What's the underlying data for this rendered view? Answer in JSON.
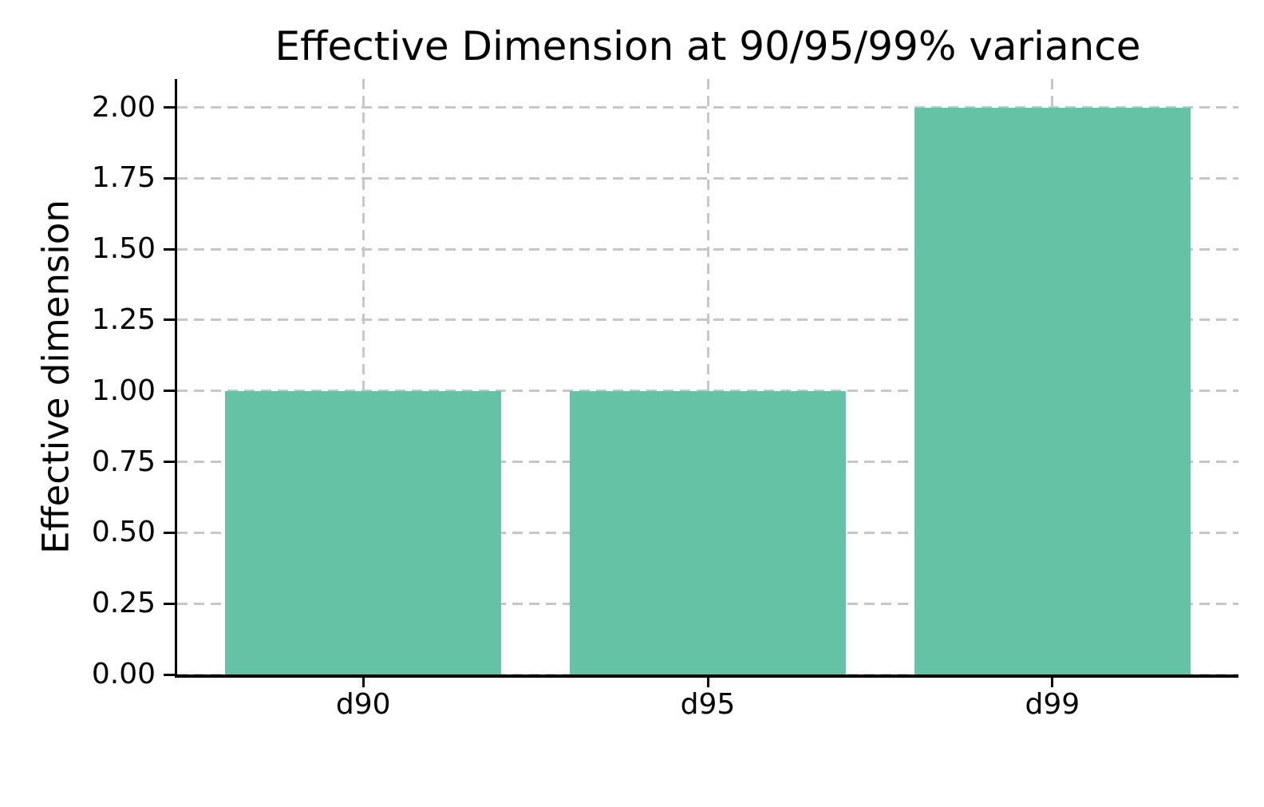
{
  "chart_data": {
    "type": "bar",
    "title": "Effective Dimension at 90/95/99% variance",
    "xlabel": "",
    "ylabel": "Effective dimension",
    "categories": [
      "d90",
      "d95",
      "d99"
    ],
    "values": [
      1,
      1,
      2
    ],
    "yticks": [
      0,
      0.25,
      0.5,
      0.75,
      1,
      1.25,
      1.5,
      1.75,
      2
    ],
    "ytick_labels": [
      "0.00",
      "0.25",
      "0.50",
      "0.75",
      "1.00",
      "1.25",
      "1.50",
      "1.75",
      "2.00"
    ],
    "ylim": [
      0,
      2.1
    ],
    "xlim": [
      -0.54,
      2.54
    ],
    "bar_width": 0.8,
    "bar_color": "#66c2a5",
    "grid": true,
    "grid_style": "dashed",
    "grid_color": "#c6c6c6",
    "grid_axes": "both",
    "legend": "none",
    "background": "#ffffff",
    "text_color": "#000000"
  }
}
